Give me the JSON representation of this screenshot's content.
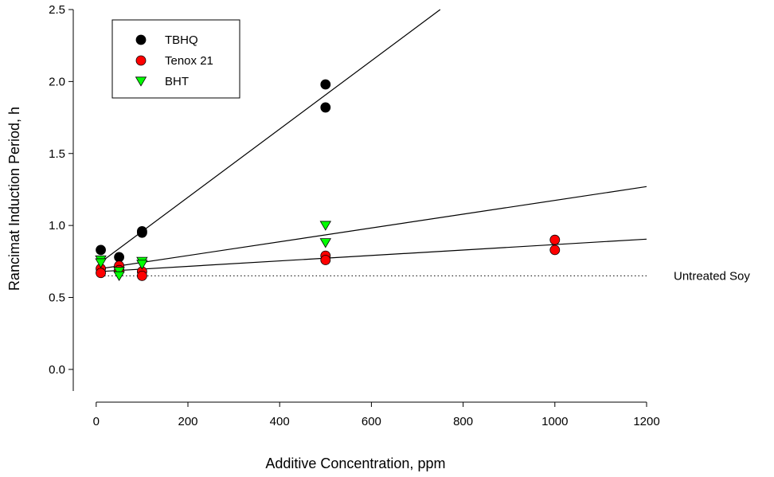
{
  "chart_data": {
    "type": "scatter",
    "xlabel": "Additive Concentration, ppm",
    "ylabel": "Rancimat Induction Period, h",
    "xlim": [
      -50,
      1200
    ],
    "ylim": [
      -0.15,
      2.5
    ],
    "x_ticks": [
      0,
      200,
      400,
      600,
      800,
      1000,
      1200
    ],
    "y_ticks": [
      0.0,
      0.5,
      1.0,
      1.5,
      2.0,
      2.5
    ],
    "x_tick_labels": [
      "0",
      "200",
      "400",
      "600",
      "800",
      "1000",
      "1200"
    ],
    "y_tick_labels": [
      "0.0",
      "0.5",
      "1.0",
      "1.5",
      "2.0",
      "2.5"
    ],
    "legend_position": "top-left",
    "series": [
      {
        "name": "TBHQ",
        "marker": "circle",
        "color": "#000000",
        "points": [
          [
            10,
            0.83
          ],
          [
            50,
            0.78
          ],
          [
            100,
            0.96
          ],
          [
            100,
            0.95
          ],
          [
            500,
            1.98
          ],
          [
            500,
            1.82
          ]
        ],
        "fit": {
          "x0": 10,
          "y0": 0.745,
          "x1": 750,
          "y1": 2.5
        }
      },
      {
        "name": "Tenox 21",
        "marker": "circle",
        "color": "#ff0000",
        "points": [
          [
            10,
            0.7
          ],
          [
            10,
            0.67
          ],
          [
            50,
            0.72
          ],
          [
            50,
            0.69
          ],
          [
            100,
            0.68
          ],
          [
            100,
            0.65
          ],
          [
            500,
            0.79
          ],
          [
            500,
            0.76
          ],
          [
            1000,
            0.9
          ],
          [
            1000,
            0.83
          ]
        ],
        "fit": {
          "x0": 10,
          "y0": 0.68,
          "x1": 1200,
          "y1": 0.905
        }
      },
      {
        "name": "BHT",
        "marker": "triangle-down",
        "color": "#00ff00",
        "points": [
          [
            10,
            0.76
          ],
          [
            10,
            0.74
          ],
          [
            50,
            0.68
          ],
          [
            50,
            0.65
          ],
          [
            100,
            0.75
          ],
          [
            100,
            0.73
          ],
          [
            500,
            1.0
          ],
          [
            500,
            0.88
          ]
        ],
        "fit": {
          "x0": 10,
          "y0": 0.7,
          "x1": 1200,
          "y1": 1.27
        }
      }
    ],
    "reference_line": {
      "y": 0.65,
      "style": "dotted",
      "label": "Untreated Soy"
    }
  }
}
